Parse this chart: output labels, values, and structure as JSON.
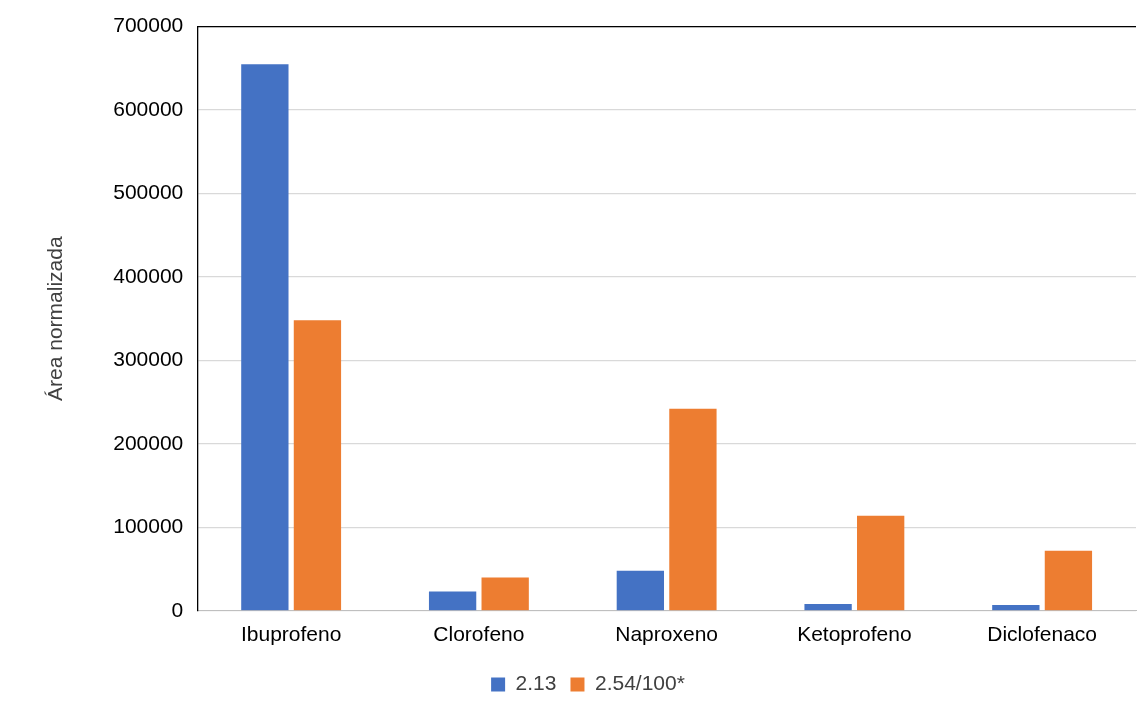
{
  "chart_data": {
    "type": "bar",
    "ylabel": "Área normalizada",
    "categories": [
      "Ibuprofeno",
      "Clorofeno",
      "Naproxeno",
      "Ketoprofeno",
      "Diclofenaco"
    ],
    "series": [
      {
        "name": "2.13",
        "color": "#4472c4",
        "values": [
          655000,
          23000,
          48000,
          8000,
          7000
        ]
      },
      {
        "name": "2.54/100*",
        "color": "#ed7d31",
        "values": [
          348000,
          40000,
          242000,
          114000,
          72000
        ]
      }
    ],
    "ylim": [
      0,
      700000
    ],
    "yticks": [
      0,
      100000,
      200000,
      300000,
      400000,
      500000,
      600000,
      700000
    ],
    "grid": "y",
    "legend": "bottom"
  }
}
